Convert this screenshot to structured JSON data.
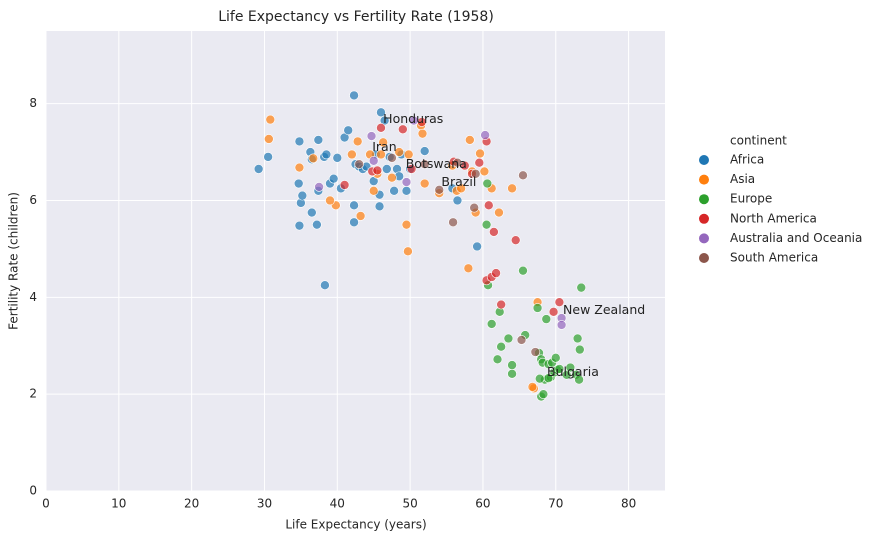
{
  "chart_data": {
    "type": "scatter",
    "title": "Life Expectancy vs Fertility Rate (1958)",
    "x_label": "Life Expectancy (years)",
    "y_label": "Fertility Rate (children)",
    "xlim": [
      0,
      85
    ],
    "ylim": [
      0,
      9.5
    ],
    "xticks": [
      0,
      10,
      20,
      30,
      40,
      50,
      60,
      70,
      80
    ],
    "yticks": [
      0,
      2,
      4,
      6,
      8
    ],
    "grid": true,
    "legend_title": "continent",
    "legend_position": "right",
    "series": [
      {
        "name": "Africa",
        "color": "#1f77b4",
        "x": [
          29.2,
          30.5,
          34.8,
          34.7,
          35.0,
          35.2,
          34.8,
          36.3,
          36.5,
          36.5,
          37.2,
          37.4,
          37.4,
          38.2,
          38.5,
          38.3,
          39.0,
          39.5,
          40.0,
          40.5,
          41.0,
          41.5,
          42.3,
          42.3,
          42.3,
          42.5,
          43.0,
          43.5,
          44.0,
          45.0,
          45.3,
          45.8,
          45.8,
          46.0,
          46.5,
          46.8,
          47.2,
          47.8,
          48.2,
          48.8,
          49.5,
          50.0,
          52.0,
          55.8,
          56.5,
          59.2,
          48.5
        ],
        "values": [
          6.65,
          6.9,
          7.22,
          6.35,
          5.95,
          6.1,
          5.48,
          7.0,
          6.85,
          5.75,
          5.5,
          7.25,
          6.2,
          6.9,
          6.95,
          4.25,
          6.35,
          6.45,
          6.88,
          6.25,
          7.3,
          7.45,
          5.9,
          5.55,
          8.17,
          6.75,
          6.7,
          6.65,
          6.7,
          6.4,
          6.95,
          6.12,
          5.88,
          7.82,
          7.65,
          6.65,
          6.9,
          6.2,
          6.65,
          6.95,
          6.2,
          6.65,
          7.02,
          6.25,
          6.0,
          5.05,
          6.5
        ]
      },
      {
        "name": "Asia",
        "color": "#ff7f0e",
        "x": [
          30.8,
          30.6,
          34.8,
          36.7,
          39.8,
          39.0,
          42.0,
          42.8,
          43.2,
          44.5,
          45.0,
          45.5,
          46.3,
          46.0,
          47.5,
          48.5,
          49.5,
          49.8,
          49.7,
          51.5,
          51.7,
          52.0,
          54.0,
          55.8,
          56.4,
          57.0,
          58.2,
          58.0,
          58.5,
          59.0,
          59.6,
          60.2,
          61.2,
          62.2,
          64.0,
          67.5,
          67.0,
          66.8
        ],
        "values": [
          7.67,
          7.27,
          6.68,
          6.87,
          5.9,
          6.0,
          6.95,
          7.22,
          5.68,
          6.95,
          6.2,
          6.55,
          7.2,
          6.95,
          6.47,
          7.0,
          5.5,
          6.95,
          4.95,
          7.55,
          7.38,
          6.35,
          6.15,
          6.72,
          6.2,
          6.25,
          7.25,
          4.6,
          6.6,
          5.75,
          6.97,
          6.6,
          6.25,
          5.75,
          6.25,
          3.9,
          2.12,
          2.15
        ]
      },
      {
        "name": "Europe",
        "color": "#2ca02c",
        "x": [
          60.7,
          61.2,
          62.3,
          62.0,
          62.5,
          63.5,
          64.0,
          64.0,
          65.5,
          65.8,
          67.5,
          67.7,
          68.0,
          68.2,
          68.5,
          68.0,
          68.3,
          68.7,
          69.0,
          69.5,
          69.3,
          69.8,
          70.0,
          70.2,
          70.5,
          71.5,
          72.0,
          72.8,
          73.0,
          73.2,
          73.3,
          73.5,
          60.5,
          60.6,
          69.0,
          67.8
        ],
        "values": [
          4.25,
          3.45,
          3.7,
          2.72,
          2.98,
          3.15,
          2.6,
          2.42,
          4.55,
          3.22,
          3.78,
          2.85,
          2.72,
          2.65,
          2.3,
          1.95,
          2.0,
          3.55,
          2.62,
          2.65,
          2.35,
          2.45,
          2.75,
          2.5,
          2.52,
          2.4,
          2.55,
          2.4,
          3.15,
          2.3,
          2.92,
          4.2,
          5.5,
          6.35,
          2.33,
          2.32
        ]
      },
      {
        "name": "North America",
        "color": "#d62728",
        "x": [
          41.0,
          44.8,
          45.5,
          46.0,
          49.0,
          50.2,
          51.6,
          56.0,
          57.5,
          59.5,
          60.5,
          60.8,
          60.5,
          61.2,
          61.5,
          61.8,
          62.5,
          64.5,
          69.7,
          70.5,
          58.5
        ],
        "values": [
          6.32,
          6.6,
          6.62,
          7.5,
          7.47,
          6.65,
          7.62,
          6.8,
          6.72,
          6.78,
          7.22,
          5.9,
          4.35,
          4.42,
          5.35,
          4.5,
          3.85,
          5.18,
          3.7,
          3.9,
          6.55
        ]
      },
      {
        "name": "Australia and Oceania",
        "color": "#9467bd",
        "x": [
          37.5,
          44.7,
          45.0,
          49.5,
          50.5,
          60.3,
          70.8,
          70.8
        ],
        "values": [
          6.28,
          7.33,
          6.82,
          6.38,
          7.65,
          7.35,
          3.57,
          3.43
        ]
      },
      {
        "name": "South America",
        "color": "#8c564b",
        "x": [
          43.0,
          47.5,
          52.0,
          54.0,
          55.9,
          56.5,
          58.8,
          59.0,
          65.3,
          65.5,
          67.2
        ],
        "values": [
          6.75,
          6.88,
          6.75,
          6.22,
          5.55,
          6.78,
          5.85,
          6.55,
          3.12,
          6.52,
          2.87
        ]
      }
    ],
    "annotations": [
      {
        "text": "Honduras",
        "x": 46.3,
        "y": 7.67
      },
      {
        "text": "Iran",
        "x": 44.8,
        "y": 7.09
      },
      {
        "text": "Botswana",
        "x": 49.4,
        "y": 6.74
      },
      {
        "text": "Brazil",
        "x": 54.3,
        "y": 6.37
      },
      {
        "text": "New Zealand",
        "x": 71.0,
        "y": 3.73
      },
      {
        "text": "Bulgaria",
        "x": 68.8,
        "y": 2.45
      }
    ]
  }
}
